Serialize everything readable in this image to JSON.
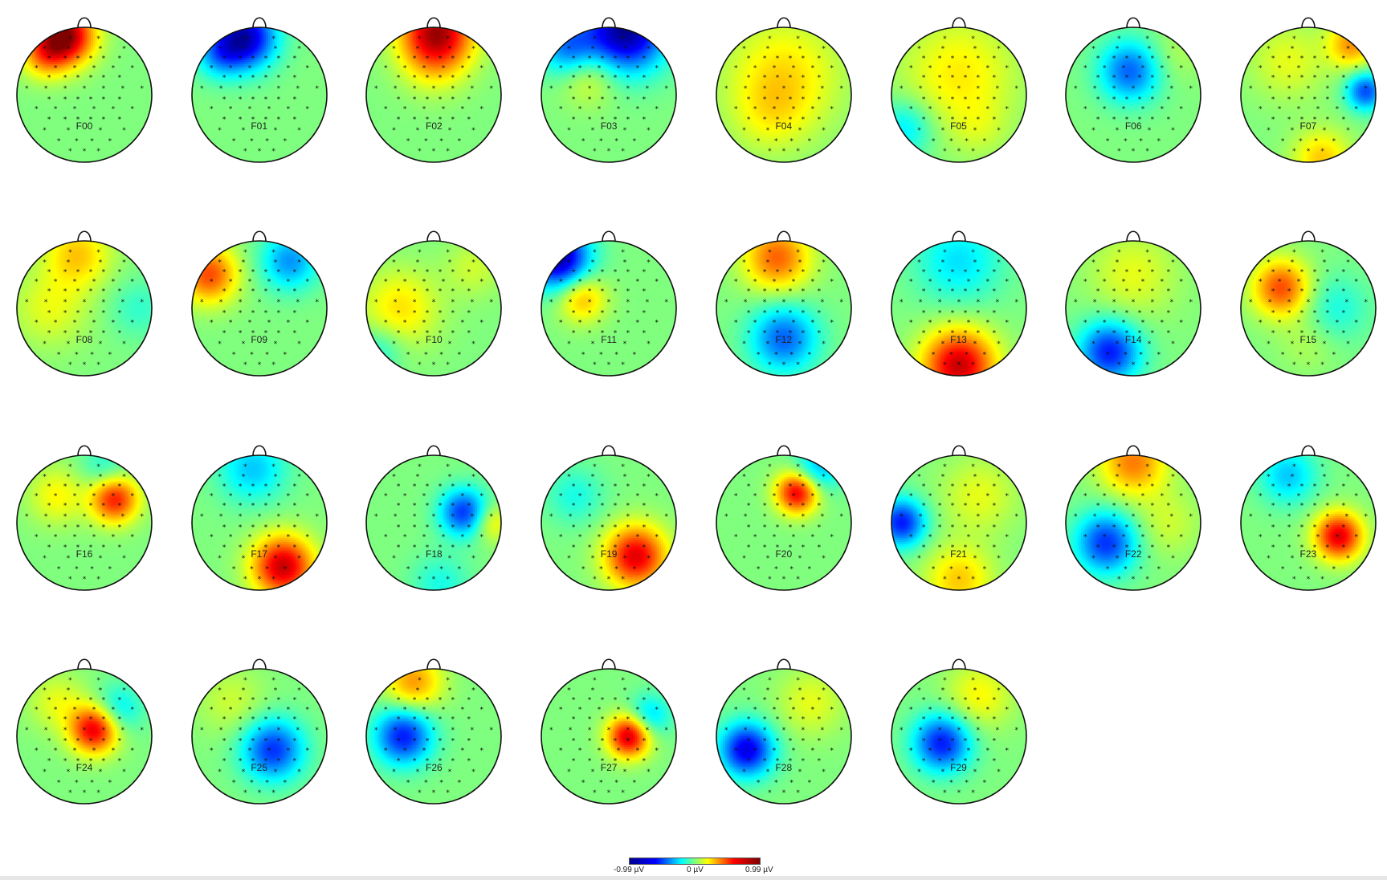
{
  "chart_data": {
    "type": "heatmap",
    "title": "",
    "colormap": [
      "#00008f",
      "#0000ff",
      "#00ffff",
      "#ffff00",
      "#ff0000",
      "#800000"
    ],
    "colorbar": {
      "min_label": "-0.99 µV",
      "mid_label": "0 µV",
      "max_label": "0.99 µV",
      "vmin": -0.99,
      "vmax": 0.99
    },
    "maps": [
      {
        "label": "F00",
        "sources": [
          {
            "x": -0.28,
            "y": 0.88,
            "a": 0.95,
            "r": 0.3
          },
          {
            "x": -0.6,
            "y": 0.6,
            "a": 0.4,
            "r": 0.25
          }
        ]
      },
      {
        "label": "F01",
        "sources": [
          {
            "x": -0.22,
            "y": 0.85,
            "a": -0.9,
            "r": 0.32
          },
          {
            "x": -0.6,
            "y": 0.6,
            "a": -0.35,
            "r": 0.25
          }
        ]
      },
      {
        "label": "F02",
        "sources": [
          {
            "x": 0.05,
            "y": 0.95,
            "a": 0.85,
            "r": 0.38
          },
          {
            "x": 0.0,
            "y": 0.5,
            "a": 0.2,
            "r": 0.35
          }
        ]
      },
      {
        "label": "F03",
        "sources": [
          {
            "x": 0.25,
            "y": 0.95,
            "a": -0.99,
            "r": 0.42
          },
          {
            "x": -0.6,
            "y": 0.7,
            "a": -0.5,
            "r": 0.3
          },
          {
            "x": -0.3,
            "y": 0.3,
            "a": 0.25,
            "r": 0.3
          }
        ]
      },
      {
        "label": "F04",
        "sources": [
          {
            "x": 0.0,
            "y": 0.3,
            "a": 0.3,
            "r": 0.6
          },
          {
            "x": -0.2,
            "y": -0.3,
            "a": 0.15,
            "r": 0.4
          }
        ]
      },
      {
        "label": "F05",
        "sources": [
          {
            "x": 0.0,
            "y": 0.3,
            "a": 0.28,
            "r": 0.6
          },
          {
            "x": -0.8,
            "y": -0.5,
            "a": -0.3,
            "r": 0.3
          },
          {
            "x": 0.3,
            "y": -0.5,
            "a": 0.1,
            "r": 0.3
          }
        ]
      },
      {
        "label": "F06",
        "sources": [
          {
            "x": -0.05,
            "y": 0.35,
            "a": -0.55,
            "r": 0.32
          },
          {
            "x": 0.6,
            "y": 0.6,
            "a": 0.1,
            "r": 0.3
          }
        ]
      },
      {
        "label": "F07",
        "sources": [
          {
            "x": 0.85,
            "y": 0.05,
            "a": -0.6,
            "r": 0.2
          },
          {
            "x": 0.65,
            "y": 0.75,
            "a": 0.45,
            "r": 0.25
          },
          {
            "x": 0.2,
            "y": -0.95,
            "a": 0.35,
            "r": 0.3
          },
          {
            "x": -0.3,
            "y": 0.5,
            "a": 0.2,
            "r": 0.4
          }
        ]
      },
      {
        "label": "F08",
        "sources": [
          {
            "x": -0.1,
            "y": 0.8,
            "a": 0.35,
            "r": 0.35
          },
          {
            "x": -0.5,
            "y": 0.0,
            "a": 0.2,
            "r": 0.4
          },
          {
            "x": 0.8,
            "y": 0.0,
            "a": -0.15,
            "r": 0.3
          }
        ]
      },
      {
        "label": "F09",
        "sources": [
          {
            "x": -0.75,
            "y": 0.5,
            "a": 0.6,
            "r": 0.3
          },
          {
            "x": 0.45,
            "y": 0.7,
            "a": -0.45,
            "r": 0.3
          }
        ]
      },
      {
        "label": "F10",
        "sources": [
          {
            "x": -0.5,
            "y": 0.0,
            "a": 0.3,
            "r": 0.4
          },
          {
            "x": 0.6,
            "y": 0.6,
            "a": 0.15,
            "r": 0.3
          },
          {
            "x": -0.8,
            "y": -0.6,
            "a": -0.2,
            "r": 0.25
          }
        ]
      },
      {
        "label": "F11",
        "sources": [
          {
            "x": -0.75,
            "y": 0.75,
            "a": -0.95,
            "r": 0.32
          },
          {
            "x": -0.4,
            "y": 0.15,
            "a": 0.4,
            "r": 0.25
          }
        ]
      },
      {
        "label": "F12",
        "sources": [
          {
            "x": -0.1,
            "y": 0.75,
            "a": 0.55,
            "r": 0.35
          },
          {
            "x": 0.0,
            "y": -0.45,
            "a": -0.55,
            "r": 0.35
          }
        ]
      },
      {
        "label": "F13",
        "sources": [
          {
            "x": 0.0,
            "y": -0.85,
            "a": 0.85,
            "r": 0.38
          },
          {
            "x": 0.0,
            "y": 0.7,
            "a": -0.3,
            "r": 0.45
          }
        ]
      },
      {
        "label": "F14",
        "sources": [
          {
            "x": -0.35,
            "y": -0.65,
            "a": -0.7,
            "r": 0.32
          },
          {
            "x": 0.0,
            "y": 0.5,
            "a": 0.2,
            "r": 0.45
          }
        ]
      },
      {
        "label": "F15",
        "sources": [
          {
            "x": -0.4,
            "y": 0.3,
            "a": 0.6,
            "r": 0.3
          },
          {
            "x": 0.4,
            "y": 0.0,
            "a": -0.2,
            "r": 0.35
          },
          {
            "x": 0.0,
            "y": -0.5,
            "a": 0.1,
            "r": 0.3
          }
        ]
      },
      {
        "label": "F16",
        "sources": [
          {
            "x": 0.45,
            "y": 0.35,
            "a": 0.7,
            "r": 0.25
          },
          {
            "x": -0.4,
            "y": 0.4,
            "a": 0.25,
            "r": 0.3
          },
          {
            "x": 0.3,
            "y": 0.8,
            "a": -0.2,
            "r": 0.25
          }
        ]
      },
      {
        "label": "F17",
        "sources": [
          {
            "x": 0.35,
            "y": -0.65,
            "a": 0.85,
            "r": 0.32
          },
          {
            "x": -0.1,
            "y": 0.8,
            "a": -0.35,
            "r": 0.35
          }
        ]
      },
      {
        "label": "F18",
        "sources": [
          {
            "x": 0.45,
            "y": 0.15,
            "a": -0.65,
            "r": 0.25
          },
          {
            "x": 0.85,
            "y": 0.0,
            "a": 0.3,
            "r": 0.2
          },
          {
            "x": 0.1,
            "y": -0.9,
            "a": -0.2,
            "r": 0.3
          }
        ]
      },
      {
        "label": "F19",
        "sources": [
          {
            "x": 0.4,
            "y": -0.5,
            "a": 0.8,
            "r": 0.32
          },
          {
            "x": -0.5,
            "y": 0.4,
            "a": -0.2,
            "r": 0.3
          }
        ]
      },
      {
        "label": "F20",
        "sources": [
          {
            "x": 0.2,
            "y": 0.45,
            "a": 0.8,
            "r": 0.22
          },
          {
            "x": 0.5,
            "y": 0.8,
            "a": -0.4,
            "r": 0.25
          }
        ]
      },
      {
        "label": "F21",
        "sources": [
          {
            "x": -0.85,
            "y": 0.0,
            "a": -0.7,
            "r": 0.25
          },
          {
            "x": 0.0,
            "y": -0.85,
            "a": 0.35,
            "r": 0.35
          },
          {
            "x": 0.3,
            "y": 0.4,
            "a": 0.2,
            "r": 0.4
          }
        ]
      },
      {
        "label": "F22",
        "sources": [
          {
            "x": -0.4,
            "y": -0.3,
            "a": -0.65,
            "r": 0.32
          },
          {
            "x": 0.0,
            "y": 0.9,
            "a": 0.5,
            "r": 0.35
          },
          {
            "x": 0.5,
            "y": 0.0,
            "a": 0.15,
            "r": 0.35
          }
        ]
      },
      {
        "label": "F23",
        "sources": [
          {
            "x": 0.45,
            "y": -0.2,
            "a": 0.8,
            "r": 0.25
          },
          {
            "x": -0.3,
            "y": 0.7,
            "a": -0.35,
            "r": 0.3
          }
        ]
      },
      {
        "label": "F24",
        "sources": [
          {
            "x": 0.15,
            "y": 0.1,
            "a": 0.8,
            "r": 0.25
          },
          {
            "x": 0.5,
            "y": 0.4,
            "a": -0.3,
            "r": 0.25
          },
          {
            "x": -0.4,
            "y": 0.5,
            "a": 0.2,
            "r": 0.3
          }
        ]
      },
      {
        "label": "F25",
        "sources": [
          {
            "x": 0.2,
            "y": -0.2,
            "a": -0.65,
            "r": 0.32
          },
          {
            "x": -0.4,
            "y": 0.5,
            "a": 0.15,
            "r": 0.35
          }
        ]
      },
      {
        "label": "F26",
        "sources": [
          {
            "x": -0.45,
            "y": 0.0,
            "a": -0.7,
            "r": 0.3
          },
          {
            "x": -0.3,
            "y": 0.8,
            "a": 0.45,
            "r": 0.3
          }
        ]
      },
      {
        "label": "F27",
        "sources": [
          {
            "x": 0.3,
            "y": 0.0,
            "a": 0.85,
            "r": 0.22
          },
          {
            "x": 0.6,
            "y": 0.3,
            "a": -0.35,
            "r": 0.22
          }
        ]
      },
      {
        "label": "F28",
        "sources": [
          {
            "x": -0.55,
            "y": -0.2,
            "a": -0.8,
            "r": 0.28
          },
          {
            "x": 0.4,
            "y": 0.5,
            "a": 0.2,
            "r": 0.35
          }
        ]
      },
      {
        "label": "F29",
        "sources": [
          {
            "x": -0.25,
            "y": -0.1,
            "a": -0.7,
            "r": 0.3
          },
          {
            "x": 0.3,
            "y": 0.6,
            "a": 0.25,
            "r": 0.35
          }
        ]
      }
    ]
  }
}
